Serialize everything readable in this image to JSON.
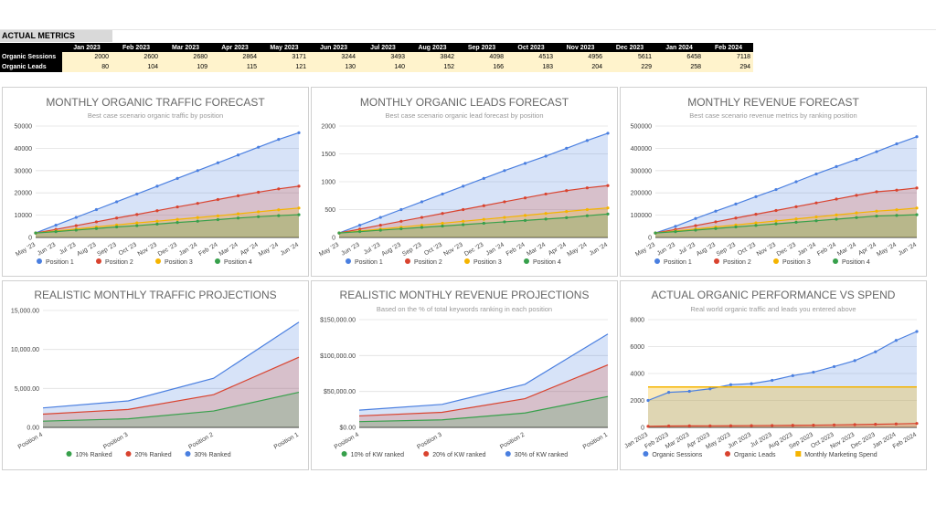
{
  "metrics": {
    "title": "ACTUAL METRICS",
    "months": [
      "Jan 2023",
      "Feb 2023",
      "Mar 2023",
      "Apr 2023",
      "May 2023",
      "Jun 2023",
      "Jul 2023",
      "Aug 2023",
      "Sep 2023",
      "Oct 2023",
      "Nov 2023",
      "Dec 2023",
      "Jan 2024",
      "Feb 2024"
    ],
    "rows": [
      {
        "label": "Organic Sessions",
        "values": [
          "2000",
          "2600",
          "2680",
          "2864",
          "3171",
          "3244",
          "3493",
          "3842",
          "4098",
          "4513",
          "4956",
          "5611",
          "6458",
          "7118"
        ]
      },
      {
        "label": "Organic Leads",
        "values": [
          "80",
          "104",
          "109",
          "115",
          "121",
          "130",
          "140",
          "152",
          "166",
          "183",
          "204",
          "229",
          "258",
          "294"
        ]
      }
    ]
  },
  "colors": {
    "blue": "#4a7fe0",
    "red": "#d9432f",
    "yellow": "#f5b400",
    "green": "#37a04b"
  },
  "chart_data": [
    {
      "type": "area",
      "title": "MONTHLY ORGANIC TRAFFIC FORECAST",
      "subtitle": "Best case scenario organic traffic by position",
      "categories": [
        "May '23",
        "Jun '23",
        "Jul '23",
        "Aug '23",
        "Sep '23",
        "Oct '23",
        "Nov '23",
        "Dec '23",
        "Jan '24",
        "Feb '24",
        "Mar '24",
        "Apr '24",
        "May '24",
        "Jun '24"
      ],
      "ylim": [
        0,
        50000
      ],
      "yticks": [
        "0",
        "10000",
        "20000",
        "30000",
        "40000",
        "50000"
      ],
      "series": [
        {
          "name": "Position 1",
          "color": "blue",
          "values": [
            2000,
            5500,
            9000,
            12500,
            16000,
            19500,
            23000,
            26500,
            30000,
            33500,
            37000,
            40500,
            44000,
            47000
          ]
        },
        {
          "name": "Position 2",
          "color": "red",
          "values": [
            2000,
            3600,
            5300,
            7000,
            8700,
            10300,
            12000,
            13700,
            15300,
            17000,
            18700,
            20300,
            21800,
            23000
          ]
        },
        {
          "name": "Position 3",
          "color": "yellow",
          "values": [
            2000,
            2900,
            3800,
            4700,
            5600,
            6500,
            7300,
            8100,
            8900,
            9700,
            10600,
            11500,
            12400,
            13200
          ]
        },
        {
          "name": "Position 4",
          "color": "green",
          "values": [
            2000,
            2600,
            3300,
            4000,
            4700,
            5300,
            6000,
            6700,
            7300,
            8000,
            8700,
            9300,
            9800,
            10200
          ]
        }
      ],
      "legend": "bottom"
    },
    {
      "type": "area",
      "title": "MONTHLY ORGANIC LEADS FORECAST",
      "subtitle": "Best case scenario organic lead forecast by position",
      "categories": [
        "May '23",
        "Jun '23",
        "Jul '23",
        "Aug '23",
        "Sep '23",
        "Oct '23",
        "Nov '23",
        "Dec '23",
        "Jan '24",
        "Feb '24",
        "Mar '24",
        "Apr '24",
        "May '24",
        "Jun '24"
      ],
      "ylim": [
        0,
        2000
      ],
      "yticks": [
        "0",
        "500",
        "1000",
        "1500",
        "2000"
      ],
      "series": [
        {
          "name": "Position 1",
          "color": "blue",
          "values": [
            80,
            220,
            360,
            500,
            640,
            780,
            920,
            1060,
            1200,
            1330,
            1460,
            1600,
            1740,
            1870
          ]
        },
        {
          "name": "Position 2",
          "color": "red",
          "values": [
            80,
            150,
            220,
            290,
            360,
            430,
            500,
            570,
            640,
            710,
            780,
            840,
            890,
            930
          ]
        },
        {
          "name": "Position 3",
          "color": "yellow",
          "values": [
            80,
            115,
            150,
            185,
            220,
            255,
            290,
            325,
            360,
            395,
            430,
            465,
            500,
            530
          ]
        },
        {
          "name": "Position 4",
          "color": "green",
          "values": [
            80,
            105,
            130,
            155,
            180,
            205,
            230,
            255,
            280,
            305,
            330,
            355,
            390,
            420
          ]
        }
      ],
      "legend": "bottom"
    },
    {
      "type": "area",
      "title": "MONTHLY REVENUE FORECAST",
      "subtitle": "Best case scenario revenue metrics by ranking position",
      "categories": [
        "May '23",
        "Jun '23",
        "Jul '23",
        "Aug '23",
        "Sep '23",
        "Oct '23",
        "Nov '23",
        "Dec '23",
        "Jan '24",
        "Feb '24",
        "Mar '24",
        "Apr '24",
        "May '24",
        "Jun '24"
      ],
      "ylim": [
        0,
        500000
      ],
      "yticks": [
        "0",
        "100000",
        "200000",
        "300000",
        "400000",
        "500000"
      ],
      "series": [
        {
          "name": "Position 1",
          "color": "blue",
          "values": [
            20000,
            50000,
            85000,
            118000,
            150000,
            183000,
            215000,
            250000,
            285000,
            318000,
            350000,
            385000,
            420000,
            452000
          ]
        },
        {
          "name": "Position 2",
          "color": "red",
          "values": [
            20000,
            36000,
            53000,
            70000,
            87000,
            104000,
            121000,
            138000,
            155000,
            172000,
            189000,
            205000,
            212000,
            222000
          ]
        },
        {
          "name": "Position 3",
          "color": "yellow",
          "values": [
            20000,
            29000,
            38000,
            47000,
            56000,
            65000,
            74000,
            83000,
            92000,
            101000,
            110000,
            118000,
            124000,
            132000
          ]
        },
        {
          "name": "Position 4",
          "color": "green",
          "values": [
            20000,
            26000,
            33000,
            40000,
            47000,
            54000,
            61000,
            68000,
            75000,
            82000,
            89000,
            96000,
            99000,
            102000
          ]
        }
      ],
      "legend": "bottom"
    },
    {
      "type": "area",
      "title": "REALISTIC MONTHLY TRAFFIC PROJECTIONS",
      "subtitle": "",
      "categories": [
        "Position 4",
        "Position 3",
        "Position 2",
        "Position 1"
      ],
      "ylim": [
        0,
        15000
      ],
      "yticks": [
        "0.00",
        "5,000.00",
        "10,000.00",
        "15,000.00"
      ],
      "series": [
        {
          "name": "30% Ranked",
          "color": "blue",
          "values": [
            2500,
            3400,
            6300,
            13500
          ]
        },
        {
          "name": "20% Ranked",
          "color": "red",
          "values": [
            1700,
            2300,
            4200,
            9000
          ]
        },
        {
          "name": "10% Ranked",
          "color": "green",
          "values": [
            800,
            1100,
            2100,
            4500
          ]
        }
      ],
      "legend_order": [
        "10% Ranked",
        "20% Ranked",
        "30% Ranked"
      ],
      "legend": "bottom"
    },
    {
      "type": "area",
      "title": "REALISTIC MONTHLY REVENUE PROJECTIONS",
      "subtitle": "Based on the % of total keywords ranking in each position",
      "categories": [
        "Position 4",
        "Position 3",
        "Position 2",
        "Position 1"
      ],
      "ylim": [
        0,
        150000
      ],
      "yticks": [
        "$0.00",
        "$50,000.00",
        "$100,000.00",
        "$150,000.00"
      ],
      "series": [
        {
          "name": "30% of KW ranked",
          "color": "blue",
          "values": [
            24000,
            32000,
            60000,
            130000
          ]
        },
        {
          "name": "20% of KW ranked",
          "color": "red",
          "values": [
            16000,
            21000,
            40000,
            87000
          ]
        },
        {
          "name": "10% of KW ranked",
          "color": "green",
          "values": [
            8000,
            10500,
            20000,
            43000
          ]
        }
      ],
      "legend_order": [
        "10% of KW ranked",
        "20% of KW ranked",
        "30% of KW ranked"
      ],
      "legend": "bottom"
    },
    {
      "type": "area",
      "title": "ACTUAL ORGANIC PERFORMANCE VS SPEND",
      "subtitle": "Real world organic traffic and leads you entered above",
      "categories": [
        "Jan 2023",
        "Feb 2023",
        "Mar 2023",
        "Apr 2023",
        "May 2023",
        "Jun 2023",
        "Jul 2023",
        "Aug 2023",
        "Sep 2023",
        "Oct 2023",
        "Nov 2023",
        "Dec 2023",
        "Jan 2024",
        "Feb 2024"
      ],
      "ylim": [
        0,
        8000
      ],
      "yticks": [
        "0",
        "2000",
        "4000",
        "6000",
        "8000"
      ],
      "series": [
        {
          "name": "Organic Sessions",
          "color": "blue",
          "marker": "circle",
          "values": [
            2000,
            2600,
            2680,
            2864,
            3171,
            3244,
            3493,
            3842,
            4098,
            4513,
            4956,
            5611,
            6458,
            7118
          ]
        },
        {
          "name": "Monthly Marketing Spend",
          "color": "yellow",
          "marker": "square",
          "values": [
            3000,
            3000,
            3000,
            3000,
            3000,
            3000,
            3000,
            3000,
            3000,
            3000,
            3000,
            3000,
            3000,
            3000
          ]
        },
        {
          "name": "Organic Leads",
          "color": "red",
          "marker": "circle",
          "values": [
            80,
            104,
            109,
            115,
            121,
            130,
            140,
            152,
            166,
            183,
            204,
            229,
            258,
            294
          ]
        }
      ],
      "legend_order": [
        "Organic Sessions",
        "Organic Leads",
        "Monthly Marketing Spend"
      ],
      "legend": "bottom"
    }
  ]
}
